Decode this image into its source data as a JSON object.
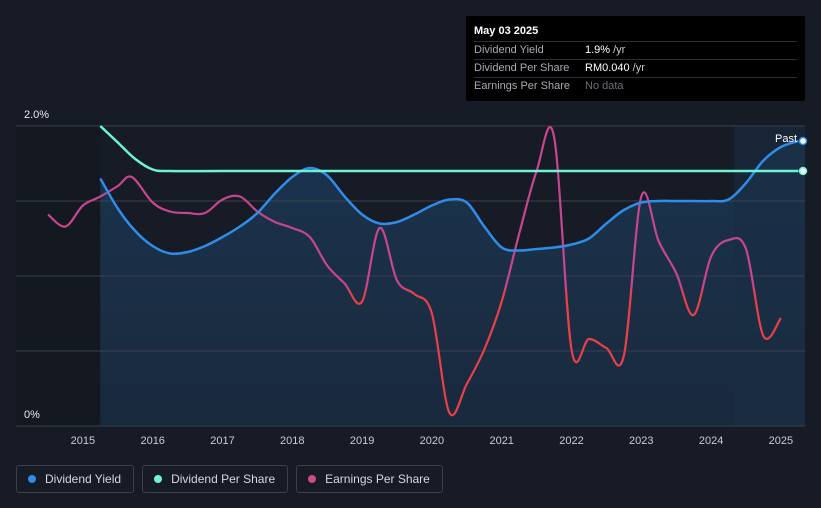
{
  "tooltip": {
    "date": "May 03 2025",
    "rows": [
      {
        "label": "Dividend Yield",
        "value": "1.9%",
        "unit": "/yr",
        "color": "#3d9be9"
      },
      {
        "label": "Dividend Per Share",
        "value": "RM0.040",
        "unit": "/yr",
        "color": "#7ff5d7"
      },
      {
        "label": "Earnings Per Share",
        "value": "No data",
        "unit": ""
      }
    ]
  },
  "past_label": "Past",
  "legend": [
    {
      "label": "Dividend Yield",
      "color": "#2f8ce8"
    },
    {
      "label": "Dividend Per Share",
      "color": "#6ff3d2"
    },
    {
      "label": "Earnings Per Share",
      "color": "#cc4a8e"
    }
  ],
  "colors": {
    "yield": "#2f8ce8",
    "dps": "#6ff3d2",
    "eps_low": "#e8404a",
    "eps_high": "#c7458e",
    "area_fill": "#1b3550",
    "forecast_shade": "#1a2e44"
  },
  "chart_data": {
    "type": "line",
    "y_axis_labels": [
      "2.0%",
      "0%"
    ],
    "ylim": [
      0,
      2.0
    ],
    "xlim": [
      2014.5,
      2025.3
    ],
    "x_ticks": [
      "2015",
      "2016",
      "2017",
      "2018",
      "2019",
      "2020",
      "2021",
      "2022",
      "2023",
      "2024",
      "2025"
    ],
    "grid": true,
    "past_from": 2024.33,
    "series": [
      {
        "name": "Dividend Yield",
        "key": "yield",
        "points": [
          [
            2015.25,
            1.65
          ],
          [
            2015.5,
            1.45
          ],
          [
            2015.75,
            1.3
          ],
          [
            2016.0,
            1.2
          ],
          [
            2016.25,
            1.15
          ],
          [
            2016.5,
            1.16
          ],
          [
            2016.75,
            1.2
          ],
          [
            2017.0,
            1.26
          ],
          [
            2017.25,
            1.33
          ],
          [
            2017.5,
            1.42
          ],
          [
            2017.75,
            1.55
          ],
          [
            2018.0,
            1.66
          ],
          [
            2018.25,
            1.72
          ],
          [
            2018.5,
            1.67
          ],
          [
            2018.75,
            1.53
          ],
          [
            2019.0,
            1.41
          ],
          [
            2019.25,
            1.35
          ],
          [
            2019.5,
            1.36
          ],
          [
            2019.75,
            1.41
          ],
          [
            2020.0,
            1.47
          ],
          [
            2020.25,
            1.51
          ],
          [
            2020.5,
            1.49
          ],
          [
            2020.75,
            1.33
          ],
          [
            2021.0,
            1.19
          ],
          [
            2021.25,
            1.17
          ],
          [
            2021.5,
            1.18
          ],
          [
            2021.75,
            1.19
          ],
          [
            2022.0,
            1.21
          ],
          [
            2022.25,
            1.25
          ],
          [
            2022.5,
            1.35
          ],
          [
            2022.75,
            1.44
          ],
          [
            2023.0,
            1.49
          ],
          [
            2023.25,
            1.5
          ],
          [
            2023.5,
            1.5
          ],
          [
            2023.75,
            1.5
          ],
          [
            2024.0,
            1.5
          ],
          [
            2024.25,
            1.51
          ],
          [
            2024.5,
            1.62
          ],
          [
            2024.75,
            1.77
          ],
          [
            2025.0,
            1.86
          ],
          [
            2025.25,
            1.9
          ]
        ]
      },
      {
        "name": "Dividend Per Share",
        "key": "dps",
        "points": [
          [
            2015.25,
            2.0
          ],
          [
            2015.5,
            1.89
          ],
          [
            2015.75,
            1.78
          ],
          [
            2016.0,
            1.71
          ],
          [
            2016.25,
            1.7
          ],
          [
            2017.0,
            1.7
          ],
          [
            2018.0,
            1.7
          ],
          [
            2019.0,
            1.7
          ],
          [
            2020.0,
            1.7
          ],
          [
            2021.0,
            1.7
          ],
          [
            2022.0,
            1.7
          ],
          [
            2023.0,
            1.7
          ],
          [
            2024.0,
            1.7
          ],
          [
            2025.0,
            1.7
          ],
          [
            2025.25,
            1.7
          ]
        ]
      },
      {
        "name": "Earnings Per Share",
        "key": "eps",
        "points": [
          [
            2014.5,
            1.41
          ],
          [
            2014.75,
            1.33
          ],
          [
            2015.0,
            1.47
          ],
          [
            2015.25,
            1.53
          ],
          [
            2015.5,
            1.6
          ],
          [
            2015.7,
            1.66
          ],
          [
            2016.0,
            1.49
          ],
          [
            2016.25,
            1.43
          ],
          [
            2016.5,
            1.42
          ],
          [
            2016.75,
            1.42
          ],
          [
            2017.0,
            1.51
          ],
          [
            2017.25,
            1.53
          ],
          [
            2017.5,
            1.43
          ],
          [
            2017.75,
            1.36
          ],
          [
            2018.0,
            1.32
          ],
          [
            2018.25,
            1.26
          ],
          [
            2018.5,
            1.07
          ],
          [
            2018.75,
            0.95
          ],
          [
            2019.0,
            0.83
          ],
          [
            2019.25,
            1.32
          ],
          [
            2019.5,
            0.97
          ],
          [
            2019.75,
            0.88
          ],
          [
            2020.0,
            0.75
          ],
          [
            2020.25,
            0.09
          ],
          [
            2020.5,
            0.28
          ],
          [
            2020.75,
            0.51
          ],
          [
            2021.0,
            0.83
          ],
          [
            2021.25,
            1.28
          ],
          [
            2021.5,
            1.7
          ],
          [
            2021.75,
            1.93
          ],
          [
            2022.0,
            0.51
          ],
          [
            2022.25,
            0.58
          ],
          [
            2022.5,
            0.52
          ],
          [
            2022.75,
            0.47
          ],
          [
            2023.0,
            1.53
          ],
          [
            2023.25,
            1.23
          ],
          [
            2023.5,
            1.02
          ],
          [
            2023.75,
            0.74
          ],
          [
            2024.0,
            1.13
          ],
          [
            2024.25,
            1.24
          ],
          [
            2024.5,
            1.18
          ],
          [
            2024.75,
            0.6
          ],
          [
            2025.0,
            0.72
          ]
        ]
      }
    ]
  }
}
